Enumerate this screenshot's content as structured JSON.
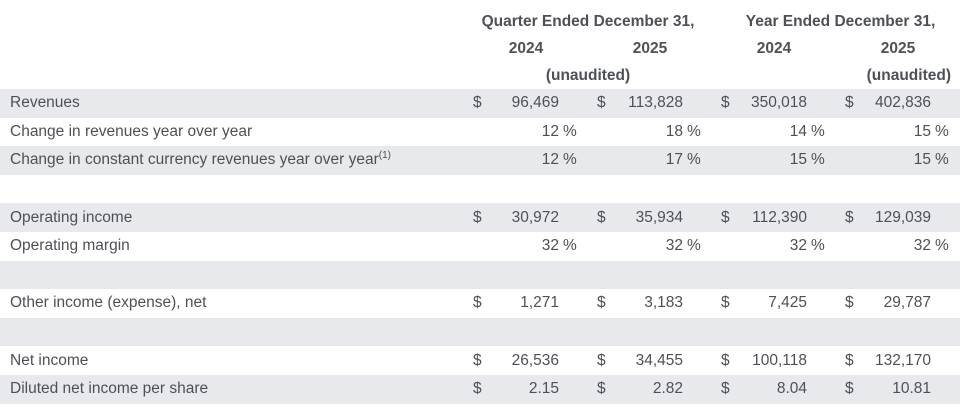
{
  "theme": {
    "stripe_color": "#e7e9ec",
    "text_color": "#4d5156",
    "background_color": "#ffffff"
  },
  "table": {
    "header": {
      "quarter_group_label": "Quarter Ended December 31,",
      "year_group_label": "Year Ended December 31,",
      "col_years": [
        "2024",
        "2025",
        "2024",
        "2025"
      ],
      "quarter_unaudited": "(unaudited)",
      "year_unaudited": "(unaudited)"
    },
    "rows": [
      {
        "label": "Revenues",
        "shade": true,
        "cells": [
          {
            "cur": "$",
            "val": "96,469"
          },
          {
            "cur": "$",
            "val": "113,828"
          },
          {
            "cur": "$",
            "val": "350,018"
          },
          {
            "cur": "$",
            "val": "402,836"
          }
        ]
      },
      {
        "label": "Change in revenues year over year",
        "shade": false,
        "cells": [
          {
            "val": "12",
            "suf": "%"
          },
          {
            "val": "18",
            "suf": "%"
          },
          {
            "val": "14",
            "suf": "%"
          },
          {
            "val": "15",
            "suf": "%"
          }
        ]
      },
      {
        "label": "Change in constant currency revenues year over year",
        "label_sup": "(1)",
        "shade": true,
        "cells": [
          {
            "val": "12",
            "suf": "%"
          },
          {
            "val": "17",
            "suf": "%"
          },
          {
            "val": "15",
            "suf": "%"
          },
          {
            "val": "15",
            "suf": "%"
          }
        ]
      },
      {
        "label": "",
        "blank": true,
        "shade": false
      },
      {
        "label": "Operating income",
        "shade": true,
        "cells": [
          {
            "cur": "$",
            "val": "30,972"
          },
          {
            "cur": "$",
            "val": "35,934"
          },
          {
            "cur": "$",
            "val": "112,390"
          },
          {
            "cur": "$",
            "val": "129,039"
          }
        ]
      },
      {
        "label": "Operating margin",
        "shade": false,
        "cells": [
          {
            "val": "32",
            "suf": "%"
          },
          {
            "val": "32",
            "suf": "%"
          },
          {
            "val": "32",
            "suf": "%"
          },
          {
            "val": "32",
            "suf": "%"
          }
        ]
      },
      {
        "label": "",
        "blank": true,
        "shade": true
      },
      {
        "label": "Other income (expense), net",
        "shade": false,
        "cells": [
          {
            "cur": "$",
            "val": "1,271"
          },
          {
            "cur": "$",
            "val": "3,183"
          },
          {
            "cur": "$",
            "val": "7,425"
          },
          {
            "cur": "$",
            "val": "29,787"
          }
        ]
      },
      {
        "label": "",
        "blank": true,
        "shade": true
      },
      {
        "label": "Net income",
        "shade": false,
        "cells": [
          {
            "cur": "$",
            "val": "26,536"
          },
          {
            "cur": "$",
            "val": "34,455"
          },
          {
            "cur": "$",
            "val": "100,118"
          },
          {
            "cur": "$",
            "val": "132,170"
          }
        ]
      },
      {
        "label": "Diluted net income per share",
        "shade": true,
        "cells": [
          {
            "cur": "$",
            "val": "2.15"
          },
          {
            "cur": "$",
            "val": "2.82"
          },
          {
            "cur": "$",
            "val": "8.04"
          },
          {
            "cur": "$",
            "val": "10.81"
          }
        ]
      }
    ]
  }
}
